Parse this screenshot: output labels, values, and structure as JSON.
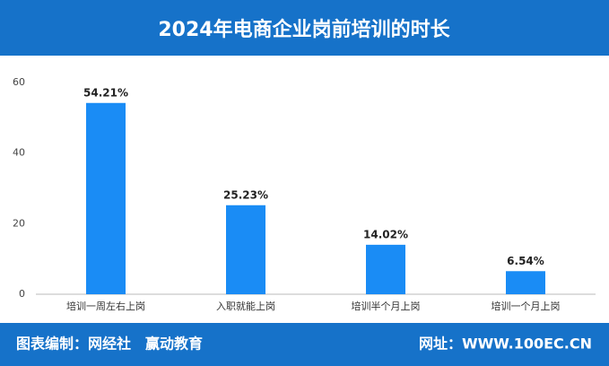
{
  "chart_data": {
    "type": "bar",
    "title": "2024年电商企业岗前培训的时长",
    "categories": [
      "培训一周左右上岗",
      "入职就能上岗",
      "培训半个月上岗",
      "培训一个月上岗"
    ],
    "values": [
      54.21,
      25.23,
      14.02,
      6.54
    ],
    "value_labels": [
      "54.21%",
      "25.23%",
      "14.02%",
      "6.54%"
    ],
    "color": "#1a8cf5",
    "ylim": [
      0,
      60
    ],
    "yticks": [
      0,
      20,
      40,
      60
    ],
    "grid": false
  },
  "footer": {
    "left": "图表编制：网经社　赢动教育",
    "right": "网址：WWW.100EC.CN"
  }
}
